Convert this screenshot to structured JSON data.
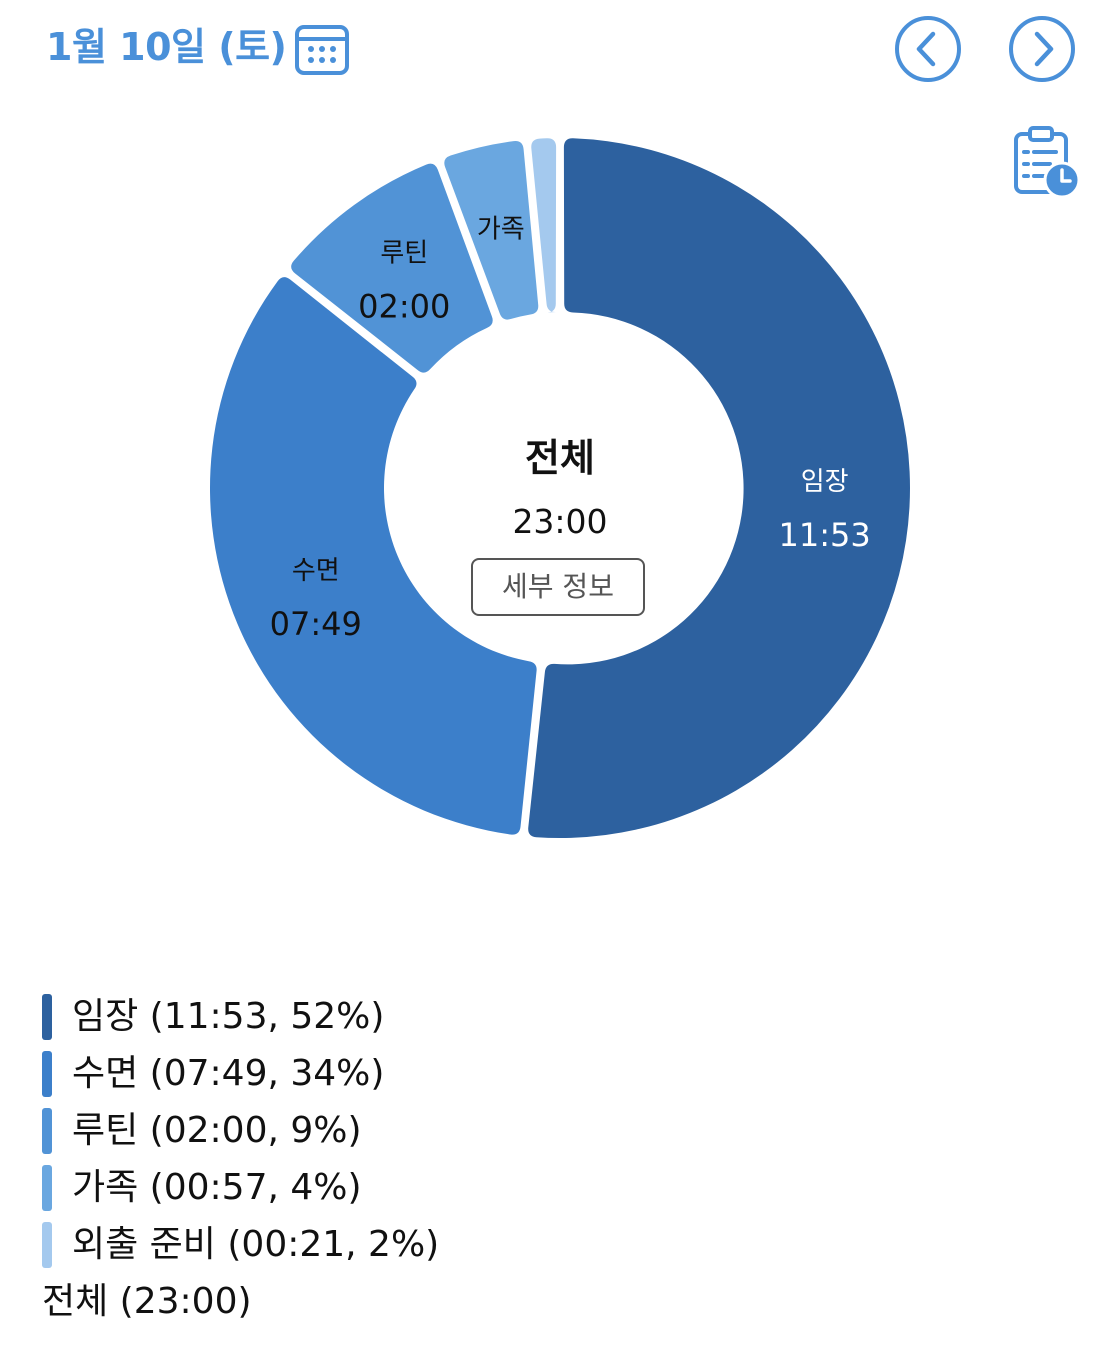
{
  "header": {
    "date_title": "1월 10일 (토)",
    "accent_color": "#4a90d9"
  },
  "icons": {
    "calendar": "calendar-icon",
    "prev": "chevron-left-circle-icon",
    "next": "chevron-right-circle-icon",
    "report": "clipboard-clock-icon"
  },
  "chart_data": {
    "type": "pie",
    "variant": "donut",
    "total_label": "23:00",
    "categories": [
      "임장",
      "수면",
      "루틴",
      "가족",
      "외출 준비"
    ],
    "values": [
      11.883,
      7.817,
      2.0,
      0.95,
      0.35
    ],
    "value_labels": [
      "11:53",
      "07:49",
      "02:00",
      "00:57",
      "00:21"
    ],
    "percents": [
      52,
      34,
      9,
      4,
      2
    ],
    "colors": [
      "#2d619f",
      "#3c7fca",
      "#5193d6",
      "#6aa7e0",
      "#a4c9ee"
    ],
    "label_colors": [
      "#ffffff",
      "#111111",
      "#111111",
      "#111111",
      "#111111"
    ],
    "show_slice_value": [
      true,
      true,
      true,
      false,
      false
    ],
    "show_slice_label": [
      true,
      true,
      true,
      true,
      false
    ]
  },
  "center": {
    "title": "전체",
    "total": "23:00",
    "detail_button": "세부 정보"
  },
  "legend": {
    "items": [
      {
        "text": "임장 (11:53, 52%)",
        "color": "#2d619f"
      },
      {
        "text": "수면 (07:49, 34%)",
        "color": "#3c7fca"
      },
      {
        "text": "루틴 (02:00, 9%)",
        "color": "#5193d6"
      },
      {
        "text": "가족 (00:57, 4%)",
        "color": "#6aa7e0"
      },
      {
        "text": "외출 준비 (00:21, 2%)",
        "color": "#a4c9ee"
      }
    ],
    "total_text": "전체 (23:00)"
  }
}
